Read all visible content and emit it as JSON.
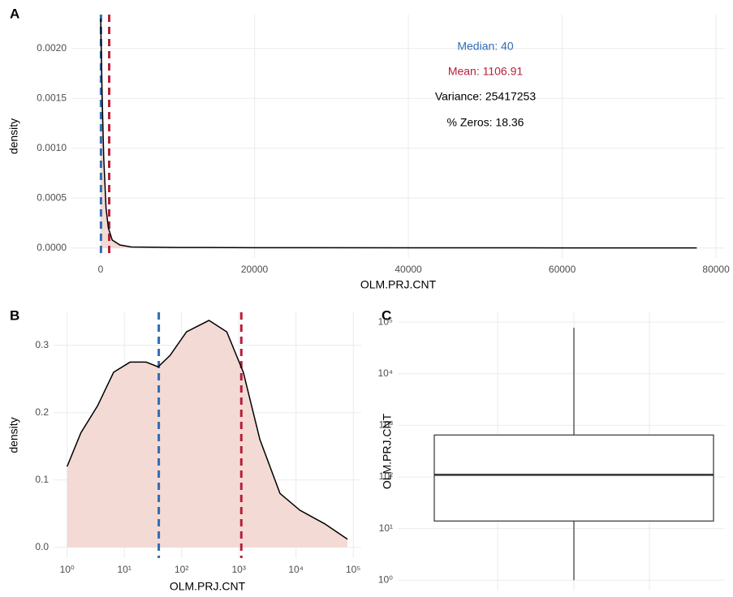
{
  "chart_data": [
    {
      "type": "density",
      "tag": "A",
      "x_label": "OLM.PRJ.CNT",
      "y_label": "density",
      "x": [
        0,
        100,
        200,
        400,
        700,
        1000,
        1500,
        2500,
        4000,
        10000,
        20000,
        40000,
        60000,
        77500
      ],
      "values": [
        0.0023,
        0.0019,
        0.0015,
        0.0009,
        0.0004,
        0.0002,
        8e-05,
        3e-05,
        1e-05,
        5e-06,
        3e-06,
        2e-06,
        1e-06,
        1e-06
      ],
      "color": "#000000",
      "fill_color": "#f3dad4",
      "vlines": [
        {
          "value": 40,
          "color": "#2f6db4"
        },
        {
          "value": 1106.91,
          "color": "#b5203a"
        }
      ],
      "annotations": [
        {
          "text": "Median:  40",
          "color": "#2f6db4"
        },
        {
          "text": "Mean:  1106.91",
          "color": "#b5203a"
        },
        {
          "text": "Variance:  25417253",
          "color": "#000000"
        },
        {
          "text": "% Zeros:  18.36",
          "color": "#000000"
        }
      ],
      "xlim": [
        -3800,
        81150
      ],
      "ylim": [
        -0.0001,
        0.00234
      ],
      "xticks": [
        0,
        20000,
        40000,
        60000,
        80000
      ],
      "yticks": [
        {
          "value": 0,
          "label": "0.0000"
        },
        {
          "value": 0.0005,
          "label": "0.0005"
        },
        {
          "value": 0.001,
          "label": "0.0010"
        },
        {
          "value": 0.0015,
          "label": "0.0015"
        },
        {
          "value": 0.002,
          "label": "0.0020"
        }
      ],
      "grid": true
    },
    {
      "type": "density",
      "tag": "B",
      "x_label": "OLM.PRJ.CNT",
      "y_label": "density",
      "x_scale": "log",
      "x": [
        1,
        1.74,
        3.4,
        6.5,
        12.6,
        24,
        39,
        63,
        122,
        302,
        617,
        1200,
        2340,
        5250,
        11700,
        31600,
        79400
      ],
      "values": [
        0.12,
        0.17,
        0.21,
        0.26,
        0.275,
        0.275,
        0.268,
        0.285,
        0.32,
        0.337,
        0.32,
        0.26,
        0.16,
        0.08,
        0.055,
        0.035,
        0.012
      ],
      "color": "#000000",
      "fill_color": "#f3dad4",
      "vlines": [
        {
          "value": 40,
          "color": "#2f6db4"
        },
        {
          "value": 1106.91,
          "color": "#b5203a"
        }
      ],
      "xlim": [
        0.58,
        138000
      ],
      "ylim": [
        -0.016,
        0.349
      ],
      "xticks": [
        {
          "value": 1,
          "label": "10⁰"
        },
        {
          "value": 10,
          "label": "10¹"
        },
        {
          "value": 100,
          "label": "10²"
        },
        {
          "value": 1000,
          "label": "10³"
        },
        {
          "value": 10000,
          "label": "10⁴"
        },
        {
          "value": 100000,
          "label": "10⁵"
        }
      ],
      "yticks": [
        {
          "value": 0,
          "label": "0.0"
        },
        0.1,
        0.2,
        0.3
      ],
      "grid": true
    },
    {
      "type": "boxplot",
      "tag": "C",
      "y_label": "OLM.PRJ.CNT",
      "y_scale": "log",
      "whisker_low": 1,
      "q1": 14,
      "median": 110,
      "q3": 650,
      "whisker_high": 77500,
      "color": "#333333",
      "ylim": [
        0.63,
        155000
      ],
      "yticks": [
        {
          "value": 1,
          "label": "10⁰"
        },
        {
          "value": 10,
          "label": "10¹"
        },
        {
          "value": 100,
          "label": "10²"
        },
        {
          "value": 1000,
          "label": "10³"
        },
        {
          "value": 10000,
          "label": "10⁴"
        },
        {
          "value": 100000,
          "label": "10⁵"
        }
      ],
      "grid": true
    }
  ]
}
